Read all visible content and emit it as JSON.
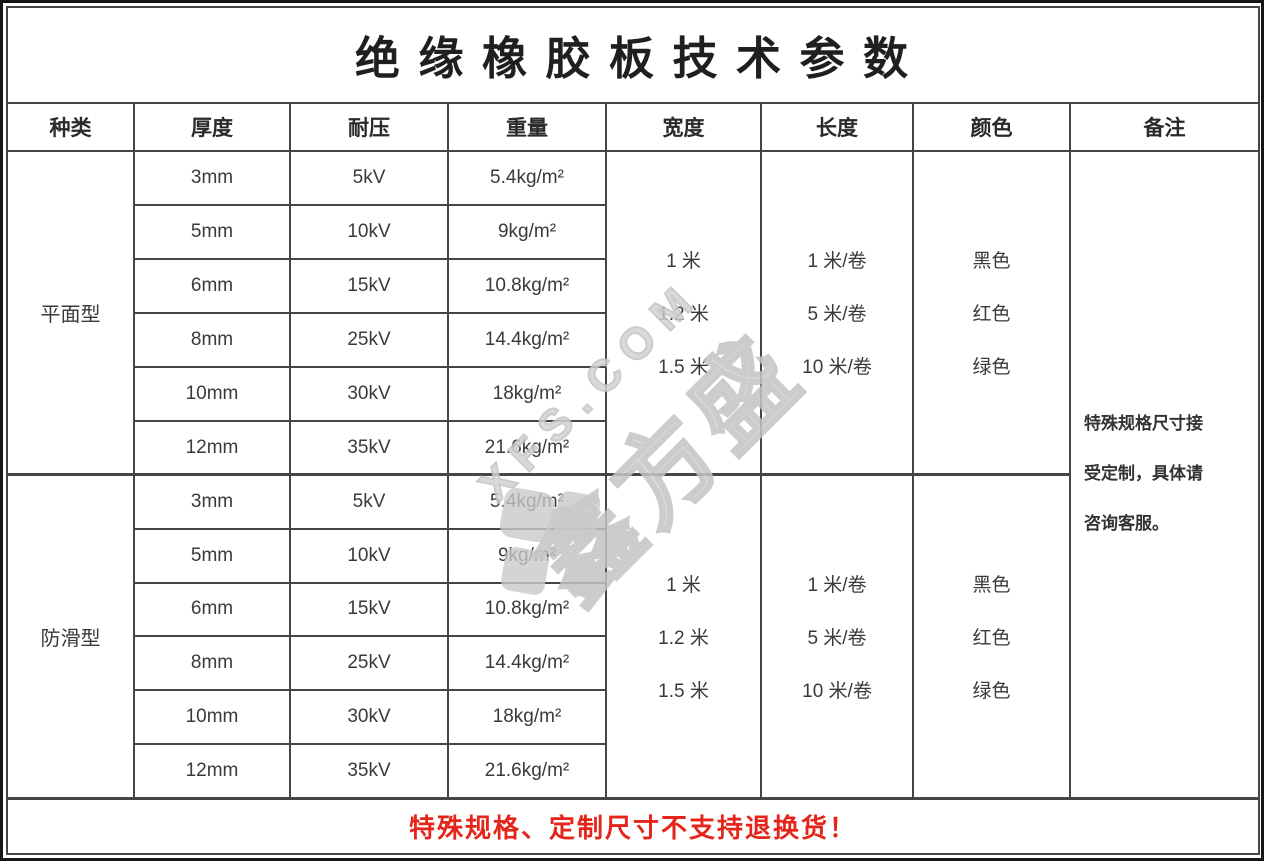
{
  "title": "绝 缘 橡 胶 板 技 术 参 数",
  "columns": [
    "种类",
    "厚度",
    "耐压",
    "重量",
    "宽度",
    "长度",
    "颜色",
    "备注"
  ],
  "groups": [
    {
      "type": "平面型",
      "rows": [
        {
          "thickness": "3mm",
          "voltage": "5kV",
          "weight": "5.4kg/m²"
        },
        {
          "thickness": "5mm",
          "voltage": "10kV",
          "weight": "9kg/m²"
        },
        {
          "thickness": "6mm",
          "voltage": "15kV",
          "weight": "10.8kg/m²"
        },
        {
          "thickness": "8mm",
          "voltage": "25kV",
          "weight": "14.4kg/m²"
        },
        {
          "thickness": "10mm",
          "voltage": "30kV",
          "weight": "18kg/m²"
        },
        {
          "thickness": "12mm",
          "voltage": "35kV",
          "weight": "21.6kg/m²"
        }
      ],
      "widths": [
        "1 米",
        "1.2 米",
        "1.5 米"
      ],
      "lengths": [
        "1 米/卷",
        "5 米/卷",
        "10 米/卷"
      ],
      "colors": [
        "黑色",
        "红色",
        "绿色"
      ]
    },
    {
      "type": "防滑型",
      "rows": [
        {
          "thickness": "3mm",
          "voltage": "5kV",
          "weight": "5.4kg/m²"
        },
        {
          "thickness": "5mm",
          "voltage": "10kV",
          "weight": "9kg/m²"
        },
        {
          "thickness": "6mm",
          "voltage": "15kV",
          "weight": "10.8kg/m²"
        },
        {
          "thickness": "8mm",
          "voltage": "25kV",
          "weight": "14.4kg/m²"
        },
        {
          "thickness": "10mm",
          "voltage": "30kV",
          "weight": "18kg/m²"
        },
        {
          "thickness": "12mm",
          "voltage": "35kV",
          "weight": "21.6kg/m²"
        }
      ],
      "widths": [
        "1 米",
        "1.2 米",
        "1.5 米"
      ],
      "lengths": [
        "1 米/卷",
        "5 米/卷",
        "10 米/卷"
      ],
      "colors": [
        "黑色",
        "红色",
        "绿色"
      ]
    }
  ],
  "remark": {
    "text": "特殊规格尺寸接受定制，具体请咨询客服。",
    "lines": [
      "特殊规格尺寸接",
      "受定制，具体请",
      "咨询客服。"
    ]
  },
  "footer": {
    "text": "特殊规格、定制尺寸不支持退换货！"
  },
  "watermark": {
    "text_en": "XFS.COM",
    "text_cn": "鑫方盛"
  },
  "palette": {
    "text": "#3a3a3a",
    "grid": "#454545",
    "border": "#161616",
    "red": "#e5251a",
    "watermark": "#c6c6c6"
  }
}
